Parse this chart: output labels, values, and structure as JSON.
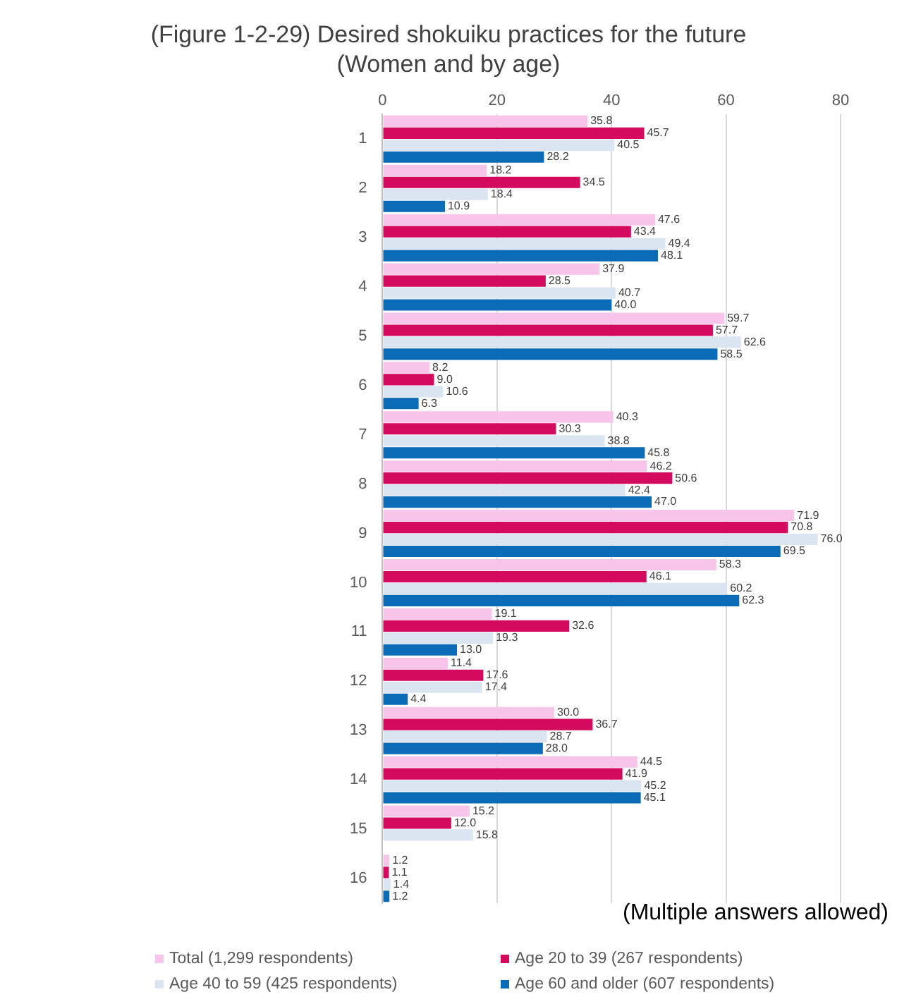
{
  "chart_data": {
    "type": "bar",
    "orientation": "horizontal",
    "title": "(Figure 1-2-29) Desired shokuiku practices for the future (Women and by age)",
    "categories": [
      "1",
      "2",
      "3",
      "4",
      "5",
      "6",
      "7",
      "8",
      "9",
      "10",
      "11",
      "12",
      "13",
      "14",
      "15",
      "16"
    ],
    "series": [
      {
        "name": "Total (1,299 respondents)",
        "color": "#f7c4ea",
        "values": [
          35.8,
          18.2,
          47.6,
          37.9,
          59.7,
          8.2,
          40.3,
          46.2,
          71.9,
          58.3,
          19.1,
          11.4,
          30.0,
          44.5,
          15.2,
          1.2
        ],
        "value_labels": [
          "35.8",
          "18.2",
          "47.6",
          "37.9",
          "59.7",
          "8.2",
          "40.3",
          "46.2",
          "71.9",
          "58.3",
          "19.1",
          "11.4",
          "30.0",
          "44.5",
          "15.2",
          "1.2"
        ]
      },
      {
        "name": "Age 20 to 39 (267 respondents)",
        "color": "#d40a5e",
        "values": [
          45.7,
          34.5,
          43.4,
          28.5,
          57.7,
          9.0,
          30.3,
          50.6,
          70.8,
          46.1,
          32.6,
          17.6,
          36.7,
          41.9,
          12.0,
          1.1
        ],
        "value_labels": [
          "45.7",
          "34.5",
          "43.4",
          "28.5",
          "57.7",
          "9.0",
          "30.3",
          "50.6",
          "70.8",
          "46.1",
          "32.6",
          "17.6",
          "36.7",
          "41.9",
          "12.0",
          "1.1"
        ]
      },
      {
        "name": "Age 40 to 59 (425 respondents)",
        "color": "#dbe5f1",
        "values": [
          40.5,
          18.4,
          49.4,
          40.7,
          62.6,
          10.6,
          38.8,
          42.4,
          76.0,
          60.2,
          19.3,
          17.4,
          28.7,
          45.2,
          15.8,
          1.4
        ],
        "value_labels": [
          "40.5",
          "18.4",
          "49.4",
          "40.7",
          "62.6",
          "10.6",
          "38.8",
          "42.4",
          "76.0",
          "60.2",
          "19.3",
          "17.4",
          "28.7",
          "45.2",
          "15.8",
          "1.4"
        ]
      },
      {
        "name": "Age 60 and older (607 respondents)",
        "color": "#0b6bb6",
        "values": [
          28.2,
          10.9,
          48.1,
          40.0,
          58.5,
          6.3,
          45.8,
          47.0,
          69.5,
          62.3,
          13.0,
          4.4,
          28.0,
          45.1,
          null,
          1.2
        ],
        "value_labels": [
          "28.2",
          "10.9",
          "48.1",
          "40.0",
          "58.5",
          "6.3",
          "45.8",
          "47.0",
          "69.5",
          "62.3",
          "13.0",
          "4.4",
          "28.0",
          "45.1",
          null,
          "1.2"
        ]
      }
    ],
    "xlim": [
      0,
      80
    ],
    "xticks": [
      0,
      20,
      40,
      60,
      80
    ],
    "grid": "x",
    "legend": "bottom",
    "annotations": [
      "(Multiple answers allowed)"
    ]
  }
}
